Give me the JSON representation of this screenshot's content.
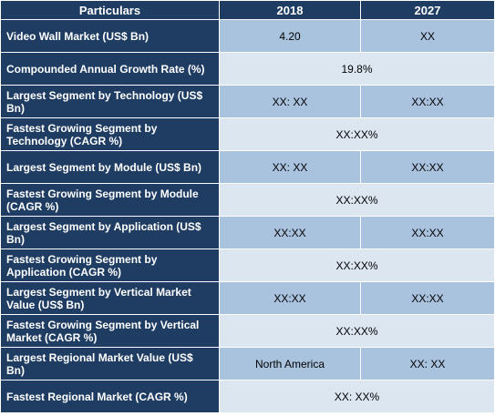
{
  "header": {
    "particulars": "Particulars",
    "year1": "2018",
    "year2": "2027"
  },
  "rows": [
    {
      "label": "Video Wall  Market (US$ Bn)",
      "v2018": "4.20",
      "v2027": "XX"
    },
    {
      "label": "Compounded Annual Growth Rate (%)",
      "merged": "19.8%"
    },
    {
      "label": "Largest Segment by Technology (US$ Bn)",
      "v2018": "XX: XX",
      "v2027": "XX:XX"
    },
    {
      "label": "Fastest Growing Segment by Technology (CAGR %)",
      "merged": "XX:XX%"
    },
    {
      "label": "Largest Segment by Module (US$ Bn)",
      "v2018": "XX: XX",
      "v2027": "XX:XX"
    },
    {
      "label": "Fastest Growing Segment by Module (CAGR %)",
      "merged": "XX:XX%"
    },
    {
      "label": "Largest Segment by Application (US$ Bn)",
      "v2018": "XX:XX",
      "v2027": "XX:XX"
    },
    {
      "label": "Fastest Growing Segment by Application (CAGR %)",
      "merged": "XX:XX%"
    },
    {
      "label": "Largest Segment by Vertical Market Value (US$ Bn)",
      "v2018": "XX:XX",
      "v2027": "XX:XX"
    },
    {
      "label": "Fastest Growing Segment by Vertical Market (CAGR %)",
      "merged": "XX:XX%"
    },
    {
      "label": "Largest Regional Market Value (US$ Bn)",
      "v2018": "North America",
      "v2027": "XX: XX"
    },
    {
      "label": "Fastest Regional Market (CAGR %)",
      "merged": "XX: XX%"
    }
  ],
  "colors": {
    "header_bg": "#1f3d63",
    "label_bg": "#1f3d63",
    "value_bg_split": "#a9c3df",
    "value_bg_merged": "#dbe6f1"
  }
}
